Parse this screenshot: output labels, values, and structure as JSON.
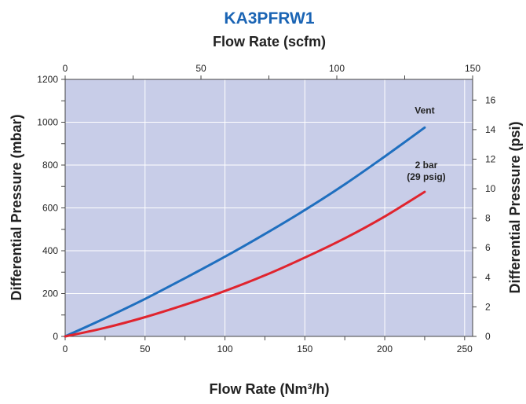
{
  "chart_data": {
    "type": "line",
    "title": "KA3PFRW1",
    "top_xlabel": "Flow Rate (scfm)",
    "xlabel": "Flow Rate (Nm³/h)",
    "ylabel": "Differential Pressure (mbar)",
    "right_ylabel": "Differential Pressure (psi)",
    "xlim": [
      0,
      255
    ],
    "ylim": [
      0,
      1200
    ],
    "top_xlim": [
      0,
      150
    ],
    "right_ylim": [
      0,
      17.4
    ],
    "x_ticks": [
      "0",
      "50",
      "100",
      "150",
      "200",
      "250"
    ],
    "y_ticks": [
      "0",
      "200",
      "400",
      "600",
      "800",
      "1000",
      "1200"
    ],
    "top_x_ticks": [
      "0",
      "50",
      "100",
      "150"
    ],
    "right_y_ticks": [
      "0",
      "2",
      "4",
      "6",
      "8",
      "10",
      "12",
      "14",
      "16"
    ],
    "grid": true,
    "series": [
      {
        "name": "Vent",
        "color": "#1f6fbf",
        "x": [
          0,
          25,
          50,
          75,
          100,
          125,
          150,
          175,
          200,
          225
        ],
        "y": [
          0,
          85,
          175,
          272,
          372,
          478,
          590,
          710,
          840,
          975
        ]
      },
      {
        "name": "2 bar\n(29 psig)",
        "color": "#e0242e",
        "x": [
          0,
          25,
          50,
          75,
          100,
          125,
          150,
          175,
          200,
          225
        ],
        "y": [
          0,
          40,
          90,
          148,
          212,
          285,
          368,
          458,
          560,
          675
        ]
      }
    ],
    "annotations": [
      {
        "text": "Vent",
        "x": 225,
        "y": 1040
      },
      {
        "text": "2 bar",
        "x": 226,
        "y": 785
      },
      {
        "text": "(29 psig)",
        "x": 226,
        "y": 730
      }
    ],
    "colors": {
      "title": "#1a64b4",
      "plot_background": "#c8cde8",
      "grid": "#ffffff",
      "axis": "#444444",
      "text": "#222222"
    }
  }
}
